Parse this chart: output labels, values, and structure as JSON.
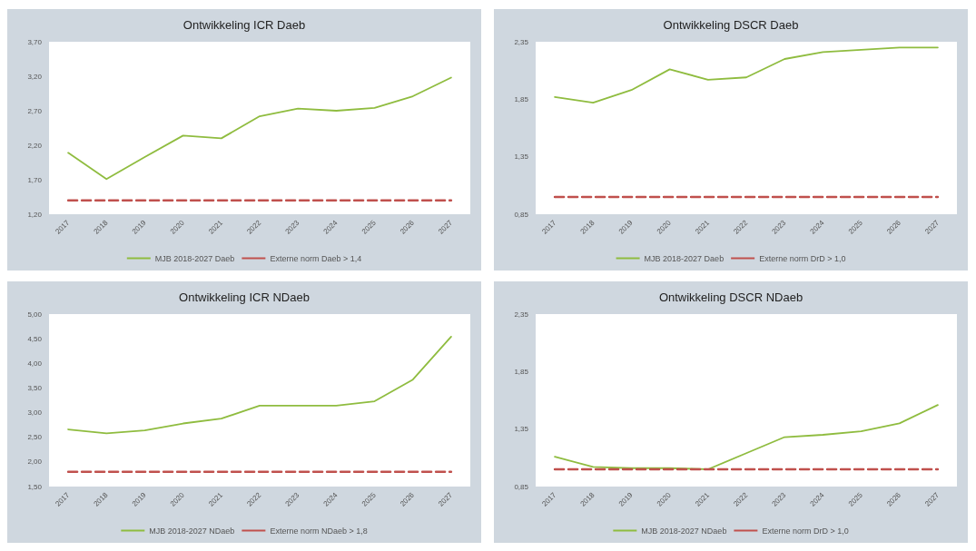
{
  "chart_data": [
    {
      "type": "line",
      "title": "Ontwikkeling ICR Daeb",
      "categories": [
        "2017",
        "2018",
        "2019",
        "2020",
        "2021",
        "2022",
        "2023",
        "2024",
        "2025",
        "2026",
        "2027"
      ],
      "series": [
        {
          "name": "MJB 2018-2027 Daeb",
          "color": "#8fbc3f",
          "line_style": "solid",
          "values": [
            2.09,
            1.71,
            2.03,
            2.34,
            2.3,
            2.62,
            2.73,
            2.7,
            2.74,
            2.91,
            3.18
          ]
        },
        {
          "name": "Externe norm Daeb > 1,4",
          "color": "#c0504d",
          "line_style": "dashed",
          "values": [
            1.4,
            1.4,
            1.4,
            1.4,
            1.4,
            1.4,
            1.4,
            1.4,
            1.4,
            1.4,
            1.4
          ]
        }
      ],
      "ylim": [
        1.2,
        3.7
      ],
      "yticks": [
        {
          "value": 1.2,
          "label": "1,20"
        },
        {
          "value": 1.7,
          "label": "1,70"
        },
        {
          "value": 2.2,
          "label": "2,20"
        },
        {
          "value": 2.7,
          "label": "2,70"
        },
        {
          "value": 3.2,
          "label": "3,20"
        },
        {
          "value": 3.7,
          "label": "3,70"
        }
      ],
      "grid": false,
      "legend": "bottom",
      "marker": "none"
    },
    {
      "type": "line",
      "title": "Ontwikkeling DSCR Daeb",
      "categories": [
        "2017",
        "2018",
        "2019",
        "2020",
        "2021",
        "2022",
        "2023",
        "2024",
        "2025",
        "2026",
        "2027"
      ],
      "series": [
        {
          "name": "MJB 2018-2027 Daeb",
          "color": "#8fbc3f",
          "line_style": "solid",
          "values": [
            1.87,
            1.82,
            1.93,
            2.11,
            2.02,
            2.04,
            2.2,
            2.26,
            2.28,
            2.3,
            2.3
          ]
        },
        {
          "name": "Externe norm DrD > 1,0",
          "color": "#c0504d",
          "line_style": "dashed",
          "values": [
            1.0,
            1.0,
            1.0,
            1.0,
            1.0,
            1.0,
            1.0,
            1.0,
            1.0,
            1.0,
            1.0
          ]
        }
      ],
      "ylim": [
        0.85,
        2.35
      ],
      "yticks": [
        {
          "value": 0.85,
          "label": "0,85"
        },
        {
          "value": 1.35,
          "label": "1,35"
        },
        {
          "value": 1.85,
          "label": "1,85"
        },
        {
          "value": 2.35,
          "label": "2,35"
        }
      ],
      "grid": false,
      "legend": "bottom",
      "marker": "none"
    },
    {
      "type": "line",
      "title": "Ontwikkeling ICR NDaeb",
      "categories": [
        "2017",
        "2018",
        "2019",
        "2020",
        "2021",
        "2022",
        "2023",
        "2024",
        "2025",
        "2026",
        "2027"
      ],
      "series": [
        {
          "name": "MJB 2018-2027 NDaeb",
          "color": "#8fbc3f",
          "line_style": "solid",
          "values": [
            2.66,
            2.58,
            2.64,
            2.78,
            2.88,
            3.14,
            3.14,
            3.14,
            3.23,
            3.67,
            4.54
          ]
        },
        {
          "name": "Externe norm NDaeb > 1,8",
          "color": "#c0504d",
          "line_style": "dashed",
          "values": [
            1.8,
            1.8,
            1.8,
            1.8,
            1.8,
            1.8,
            1.8,
            1.8,
            1.8,
            1.8,
            1.8
          ]
        }
      ],
      "ylim": [
        1.5,
        5.0
      ],
      "yticks": [
        {
          "value": 1.5,
          "label": "1,50"
        },
        {
          "value": 2.0,
          "label": "2,00"
        },
        {
          "value": 2.5,
          "label": "2,50"
        },
        {
          "value": 3.0,
          "label": "3,00"
        },
        {
          "value": 3.5,
          "label": "3,50"
        },
        {
          "value": 4.0,
          "label": "4,00"
        },
        {
          "value": 4.5,
          "label": "4,50"
        },
        {
          "value": 5.0,
          "label": "5,00"
        }
      ],
      "grid": false,
      "legend": "bottom",
      "marker": "none"
    },
    {
      "type": "line",
      "title": "Ontwikkeling DSCR NDaeb",
      "categories": [
        "2017",
        "2018",
        "2019",
        "2020",
        "2021",
        "2022",
        "2023",
        "2024",
        "2025",
        "2026",
        "2027"
      ],
      "series": [
        {
          "name": "MJB 2018-2027 NDaeb",
          "color": "#8fbc3f",
          "line_style": "solid",
          "values": [
            1.11,
            1.02,
            1.01,
            1.01,
            1.0,
            1.14,
            1.28,
            1.3,
            1.33,
            1.4,
            1.56
          ]
        },
        {
          "name": "Externe norm DrD > 1,0",
          "color": "#c0504d",
          "line_style": "dashed",
          "values": [
            1.0,
            1.0,
            1.0,
            1.0,
            1.0,
            1.0,
            1.0,
            1.0,
            1.0,
            1.0,
            1.0
          ]
        }
      ],
      "ylim": [
        0.85,
        2.35
      ],
      "yticks": [
        {
          "value": 0.85,
          "label": "0,85"
        },
        {
          "value": 1.35,
          "label": "1,35"
        },
        {
          "value": 1.85,
          "label": "1,85"
        },
        {
          "value": 2.35,
          "label": "2,35"
        }
      ],
      "grid": false,
      "legend": "bottom",
      "marker": "none"
    }
  ]
}
